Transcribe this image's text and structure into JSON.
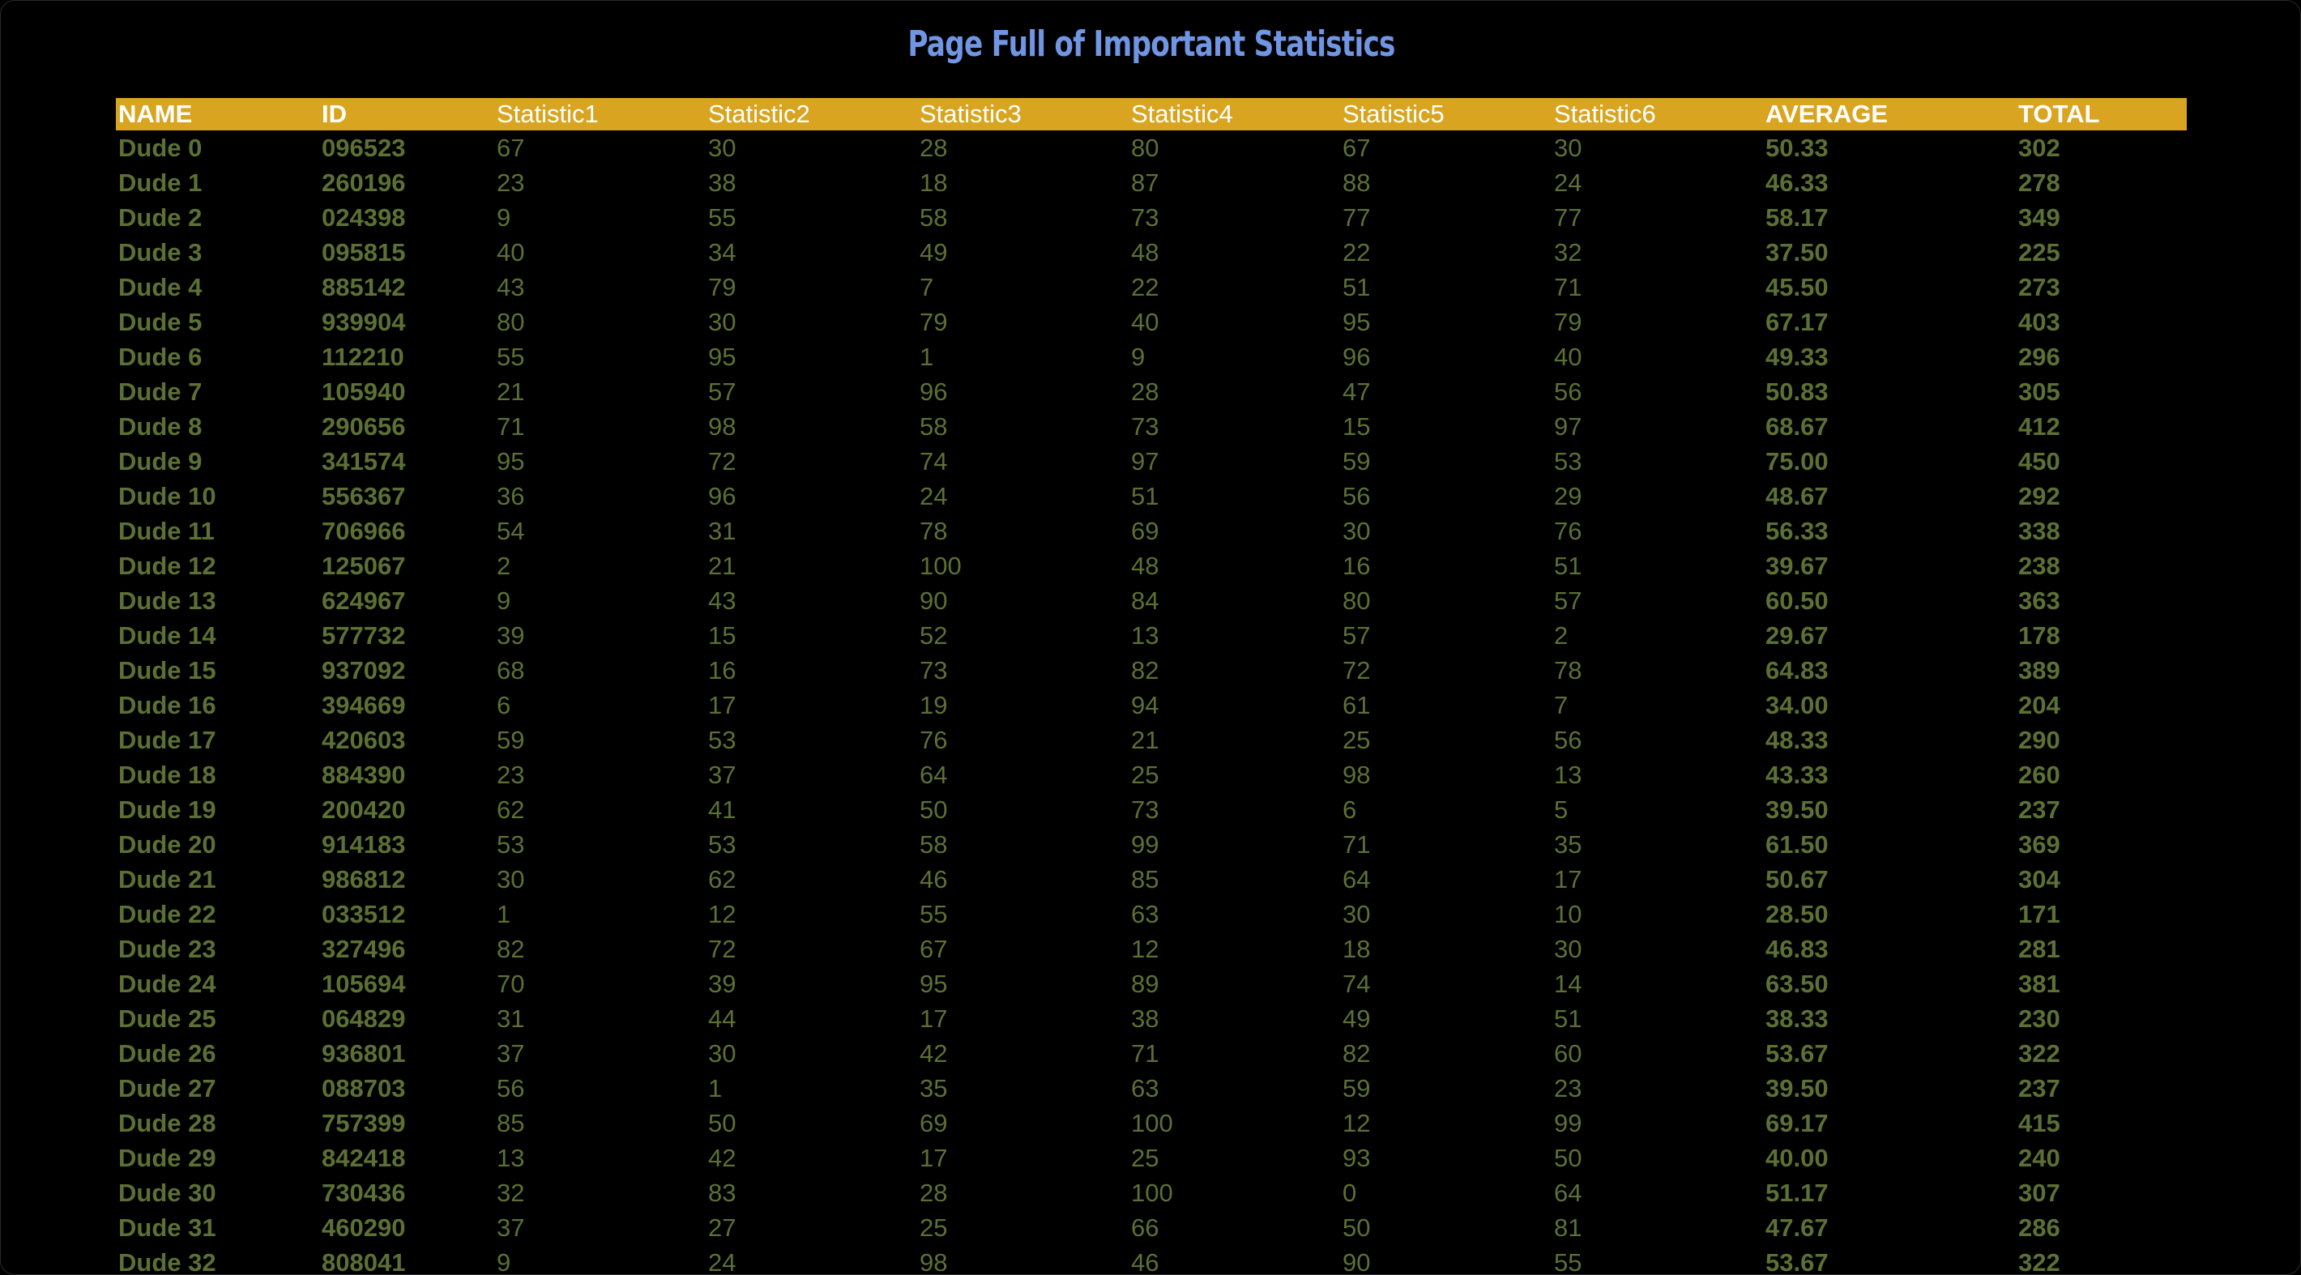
{
  "page": {
    "title": "Page Full of Important Statistics"
  },
  "colors": {
    "background": "#000000",
    "title": "#6f95e3",
    "header_bg": "#d9a520",
    "header_text": "#ffffff",
    "cell_text": "#5c7034"
  },
  "table": {
    "headers": [
      "NAME",
      "ID",
      "Statistic1",
      "Statistic2",
      "Statistic3",
      "Statistic4",
      "Statistic5",
      "Statistic6",
      "AVERAGE",
      "TOTAL"
    ],
    "rows": [
      [
        "Dude 0",
        "096523",
        "67",
        "30",
        "28",
        "80",
        "67",
        "30",
        "50.33",
        "302"
      ],
      [
        "Dude 1",
        "260196",
        "23",
        "38",
        "18",
        "87",
        "88",
        "24",
        "46.33",
        "278"
      ],
      [
        "Dude 2",
        "024398",
        "9",
        "55",
        "58",
        "73",
        "77",
        "77",
        "58.17",
        "349"
      ],
      [
        "Dude 3",
        "095815",
        "40",
        "34",
        "49",
        "48",
        "22",
        "32",
        "37.50",
        "225"
      ],
      [
        "Dude 4",
        "885142",
        "43",
        "79",
        "7",
        "22",
        "51",
        "71",
        "45.50",
        "273"
      ],
      [
        "Dude 5",
        "939904",
        "80",
        "30",
        "79",
        "40",
        "95",
        "79",
        "67.17",
        "403"
      ],
      [
        "Dude 6",
        "112210",
        "55",
        "95",
        "1",
        "9",
        "96",
        "40",
        "49.33",
        "296"
      ],
      [
        "Dude 7",
        "105940",
        "21",
        "57",
        "96",
        "28",
        "47",
        "56",
        "50.83",
        "305"
      ],
      [
        "Dude 8",
        "290656",
        "71",
        "98",
        "58",
        "73",
        "15",
        "97",
        "68.67",
        "412"
      ],
      [
        "Dude 9",
        "341574",
        "95",
        "72",
        "74",
        "97",
        "59",
        "53",
        "75.00",
        "450"
      ],
      [
        "Dude 10",
        "556367",
        "36",
        "96",
        "24",
        "51",
        "56",
        "29",
        "48.67",
        "292"
      ],
      [
        "Dude 11",
        "706966",
        "54",
        "31",
        "78",
        "69",
        "30",
        "76",
        "56.33",
        "338"
      ],
      [
        "Dude 12",
        "125067",
        "2",
        "21",
        "100",
        "48",
        "16",
        "51",
        "39.67",
        "238"
      ],
      [
        "Dude 13",
        "624967",
        "9",
        "43",
        "90",
        "84",
        "80",
        "57",
        "60.50",
        "363"
      ],
      [
        "Dude 14",
        "577732",
        "39",
        "15",
        "52",
        "13",
        "57",
        "2",
        "29.67",
        "178"
      ],
      [
        "Dude 15",
        "937092",
        "68",
        "16",
        "73",
        "82",
        "72",
        "78",
        "64.83",
        "389"
      ],
      [
        "Dude 16",
        "394669",
        "6",
        "17",
        "19",
        "94",
        "61",
        "7",
        "34.00",
        "204"
      ],
      [
        "Dude 17",
        "420603",
        "59",
        "53",
        "76",
        "21",
        "25",
        "56",
        "48.33",
        "290"
      ],
      [
        "Dude 18",
        "884390",
        "23",
        "37",
        "64",
        "25",
        "98",
        "13",
        "43.33",
        "260"
      ],
      [
        "Dude 19",
        "200420",
        "62",
        "41",
        "50",
        "73",
        "6",
        "5",
        "39.50",
        "237"
      ],
      [
        "Dude 20",
        "914183",
        "53",
        "53",
        "58",
        "99",
        "71",
        "35",
        "61.50",
        "369"
      ],
      [
        "Dude 21",
        "986812",
        "30",
        "62",
        "46",
        "85",
        "64",
        "17",
        "50.67",
        "304"
      ],
      [
        "Dude 22",
        "033512",
        "1",
        "12",
        "55",
        "63",
        "30",
        "10",
        "28.50",
        "171"
      ],
      [
        "Dude 23",
        "327496",
        "82",
        "72",
        "67",
        "12",
        "18",
        "30",
        "46.83",
        "281"
      ],
      [
        "Dude 24",
        "105694",
        "70",
        "39",
        "95",
        "89",
        "74",
        "14",
        "63.50",
        "381"
      ],
      [
        "Dude 25",
        "064829",
        "31",
        "44",
        "17",
        "38",
        "49",
        "51",
        "38.33",
        "230"
      ],
      [
        "Dude 26",
        "936801",
        "37",
        "30",
        "42",
        "71",
        "82",
        "60",
        "53.67",
        "322"
      ],
      [
        "Dude 27",
        "088703",
        "56",
        "1",
        "35",
        "63",
        "59",
        "23",
        "39.50",
        "237"
      ],
      [
        "Dude 28",
        "757399",
        "85",
        "50",
        "69",
        "100",
        "12",
        "99",
        "69.17",
        "415"
      ],
      [
        "Dude 29",
        "842418",
        "13",
        "42",
        "17",
        "25",
        "93",
        "50",
        "40.00",
        "240"
      ],
      [
        "Dude 30",
        "730436",
        "32",
        "83",
        "28",
        "100",
        "0",
        "64",
        "51.17",
        "307"
      ],
      [
        "Dude 31",
        "460290",
        "37",
        "27",
        "25",
        "66",
        "50",
        "81",
        "47.67",
        "286"
      ],
      [
        "Dude 32",
        "808041",
        "9",
        "24",
        "98",
        "46",
        "90",
        "55",
        "53.67",
        "322"
      ]
    ]
  }
}
